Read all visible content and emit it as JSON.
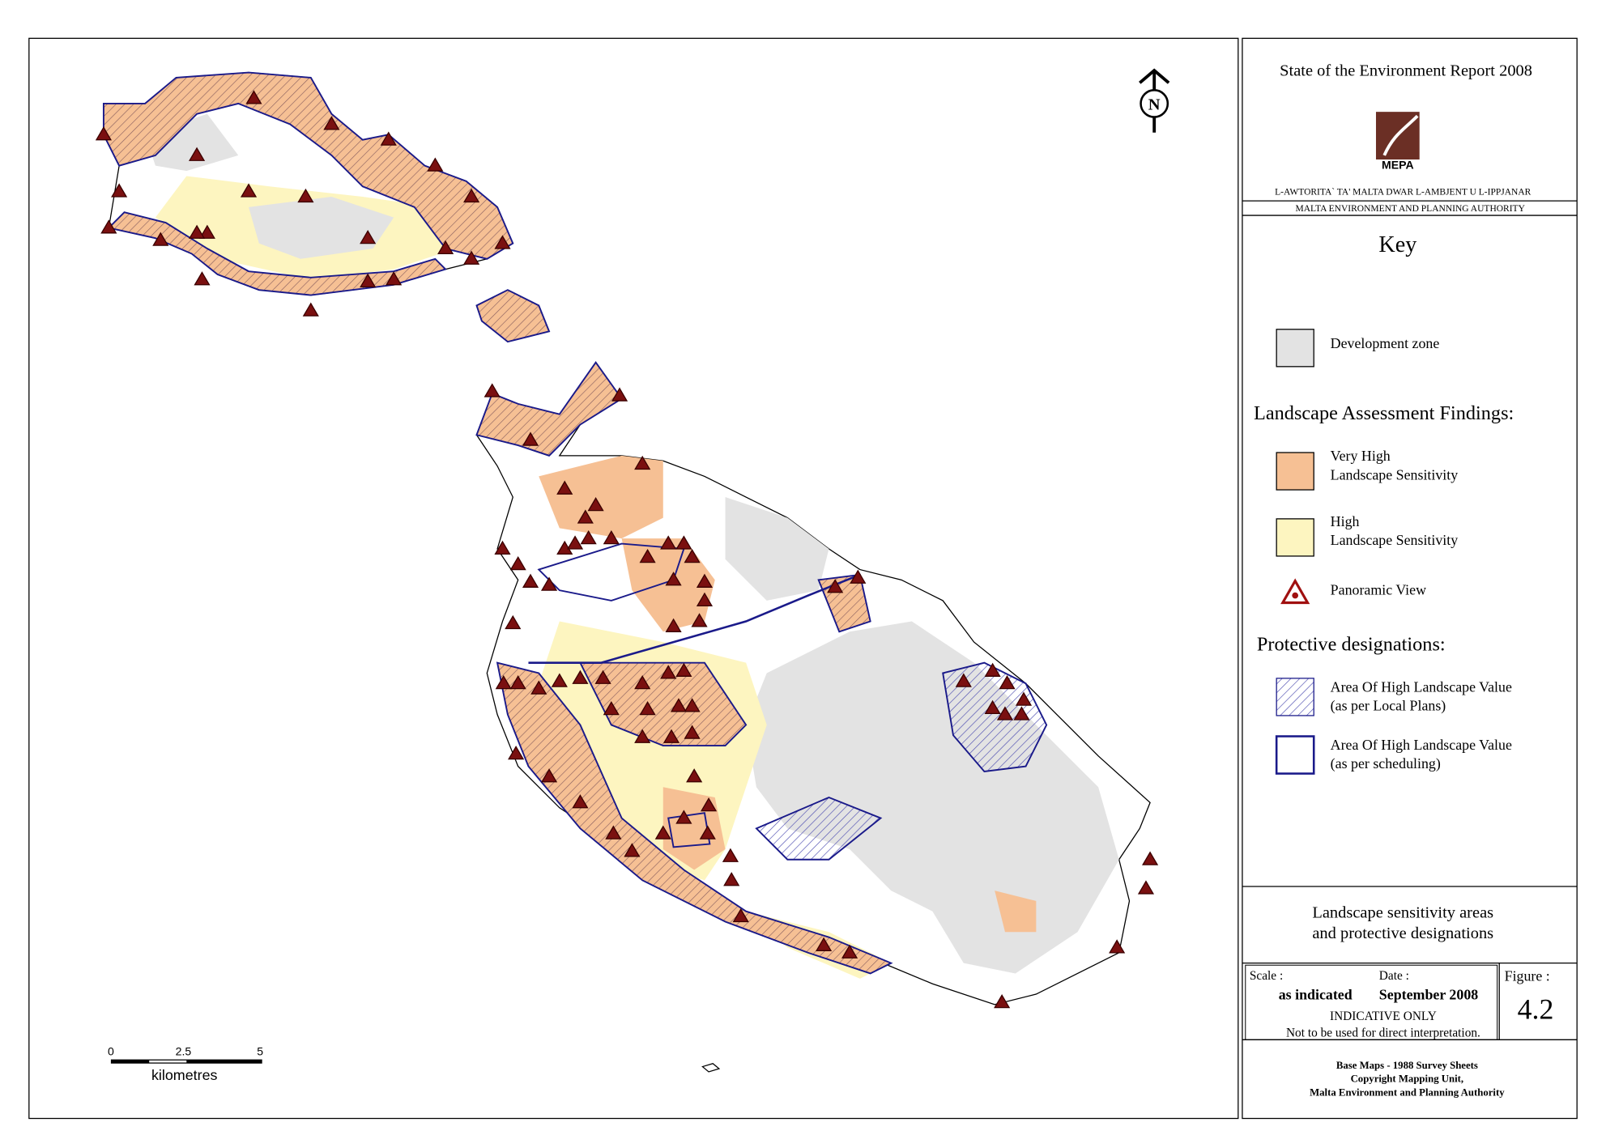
{
  "header": {
    "title": "State of the Environment Report 2008",
    "logo": "MEPA",
    "authority_mt": "L-AWTORITA` TA' MALTA DWAR L-AMBJENT U L-IPPJANAR",
    "authority_en": "MALTA ENVIRONMENT AND PLANNING AUTHORITY"
  },
  "key": {
    "title": "Key",
    "development": "Development zone",
    "findings_heading": "Landscape Assessment Findings:",
    "very_high": [
      "Very High",
      "Landscape Sensitivity"
    ],
    "high": [
      "High",
      "Landscape Sensitivity"
    ],
    "panoramic": "Panoramic View",
    "designations_heading": "Protective designations:",
    "local_plans": [
      "Area Of High Landscape Value",
      "(as per Local Plans)"
    ],
    "scheduling": [
      "Area Of High Landscape Value",
      "(as per scheduling)"
    ]
  },
  "figure": {
    "title": [
      "Landscape sensitivity areas",
      "and protective designations"
    ],
    "scale_label": "Scale :",
    "scale": "as indicated",
    "date_label": "Date :",
    "date": "September 2008",
    "number_label": "Figure :",
    "number": "4.2",
    "notice": [
      "INDICATIVE ONLY",
      "Not to be used for direct interpretation."
    ]
  },
  "credits": [
    "Base Maps - 1988 Survey Sheets",
    "Copyright Mapping Unit,",
    "Malta Environment and Planning Authority"
  ],
  "map": {
    "north": "N",
    "scale_bar": {
      "ticks": [
        "0",
        "2.5",
        "5"
      ],
      "unit": "kilometres"
    }
  }
}
